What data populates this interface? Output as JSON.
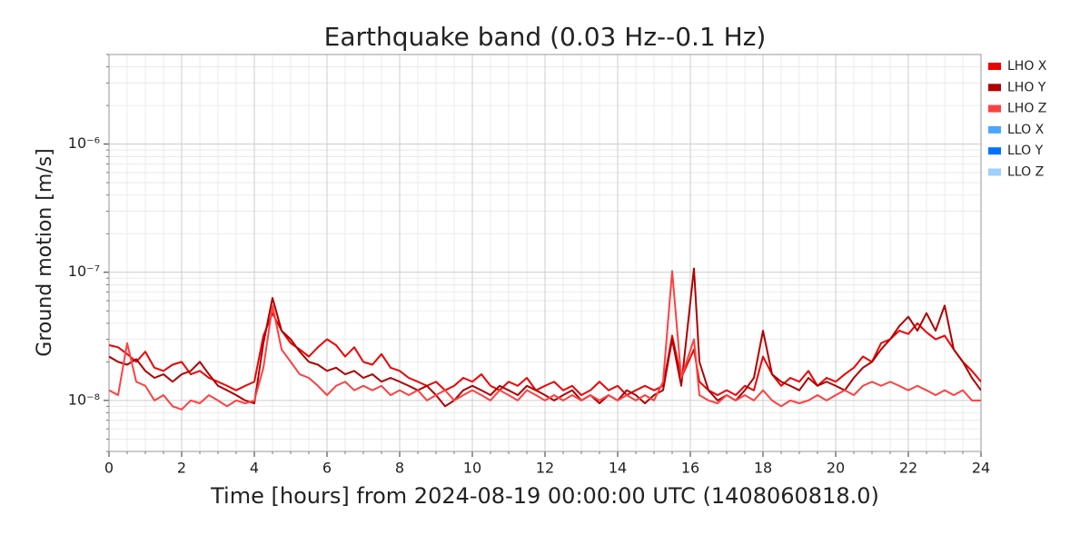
{
  "chart_data": {
    "type": "line",
    "title": "Earthquake band (0.03 Hz--0.1 Hz)",
    "xlabel": "Time [hours] from 2024-08-19 00:00:00 UTC (1408060818.0)",
    "ylabel": "Ground motion [m/s]",
    "ylog": true,
    "grid": true,
    "legend": "right",
    "xlim": [
      0,
      24
    ],
    "xticks": [
      0,
      2,
      4,
      6,
      8,
      10,
      12,
      14,
      16,
      18,
      20,
      22,
      24
    ],
    "xminorticks": [
      0.5,
      1,
      1.5,
      2.5,
      3,
      3.5,
      4.5,
      5,
      5.5,
      6.5,
      7,
      7.5,
      8.5,
      9,
      9.5,
      10.5,
      11,
      11.5,
      12.5,
      13,
      13.5,
      14.5,
      15,
      15.5,
      16.5,
      17,
      17.5,
      18.5,
      19,
      19.5,
      20.5,
      21,
      21.5,
      22.5,
      23,
      23.5
    ],
    "ylim": [
      4e-09,
      5e-06
    ],
    "yticks": [
      {
        "value": 1e-08,
        "label": "10⁻⁸"
      },
      {
        "value": 1e-07,
        "label": "10⁻⁷"
      },
      {
        "value": 1e-06,
        "label": "10⁻⁶"
      }
    ],
    "yminorticks": [
      4e-09,
      5e-09,
      6e-09,
      7e-09,
      8e-09,
      9e-09,
      2e-08,
      3e-08,
      4e-08,
      5e-08,
      6e-08,
      7e-08,
      8e-08,
      9e-08,
      2e-07,
      3e-07,
      4e-07,
      5e-07,
      6e-07,
      7e-07,
      8e-07,
      9e-07,
      2e-06,
      3e-06,
      4e-06,
      5e-06
    ],
    "x": [
      0,
      0.25,
      0.5,
      0.75,
      1,
      1.25,
      1.5,
      1.75,
      2,
      2.25,
      2.5,
      2.75,
      3,
      3.25,
      3.5,
      3.75,
      4,
      4.25,
      4.5,
      4.75,
      5,
      5.25,
      5.5,
      5.75,
      6,
      6.25,
      6.5,
      6.75,
      7,
      7.25,
      7.5,
      7.75,
      8,
      8.25,
      8.5,
      8.75,
      9,
      9.25,
      9.5,
      9.75,
      10,
      10.25,
      10.5,
      10.75,
      11,
      11.25,
      11.5,
      11.75,
      12,
      12.25,
      12.5,
      12.75,
      13,
      13.25,
      13.5,
      13.75,
      14,
      14.25,
      14.5,
      14.75,
      15,
      15.25,
      15.5,
      15.75,
      16.1,
      16.25,
      16.5,
      16.75,
      17,
      17.25,
      17.5,
      17.75,
      18,
      18.25,
      18.5,
      18.75,
      19,
      19.25,
      19.5,
      19.75,
      20,
      20.25,
      20.5,
      20.75,
      21,
      21.25,
      21.5,
      21.75,
      22,
      22.25,
      22.5,
      22.75,
      23,
      23.25,
      23.5,
      23.75,
      24
    ],
    "series": [
      {
        "name": "LHO X",
        "color": "#ee0000",
        "values": [
          2.7e-08,
          2.6e-08,
          2.3e-08,
          2e-08,
          2.4e-08,
          1.8e-08,
          1.7e-08,
          1.9e-08,
          2e-08,
          1.6e-08,
          1.7e-08,
          1.5e-08,
          1.4e-08,
          1.3e-08,
          1.2e-08,
          1.3e-08,
          1.4e-08,
          3.2e-08,
          4.8e-08,
          3.5e-08,
          2.8e-08,
          2.5e-08,
          2.2e-08,
          2.6e-08,
          3e-08,
          2.7e-08,
          2.2e-08,
          2.6e-08,
          2e-08,
          1.9e-08,
          2.3e-08,
          1.8e-08,
          1.7e-08,
          1.5e-08,
          1.4e-08,
          1.3e-08,
          1.4e-08,
          1.2e-08,
          1.3e-08,
          1.5e-08,
          1.4e-08,
          1.6e-08,
          1.3e-08,
          1.2e-08,
          1.4e-08,
          1.3e-08,
          1.5e-08,
          1.2e-08,
          1.3e-08,
          1.4e-08,
          1.2e-08,
          1.3e-08,
          1.1e-08,
          1.2e-08,
          1.4e-08,
          1.2e-08,
          1.3e-08,
          1.1e-08,
          1.2e-08,
          1.3e-08,
          1.2e-08,
          1.3e-08,
          3.2e-08,
          1.5e-08,
          2.5e-08,
          1.4e-08,
          1.2e-08,
          1.1e-08,
          1.2e-08,
          1.1e-08,
          1.3e-08,
          1.2e-08,
          2.2e-08,
          1.6e-08,
          1.3e-08,
          1.5e-08,
          1.4e-08,
          1.7e-08,
          1.3e-08,
          1.5e-08,
          1.4e-08,
          1.6e-08,
          1.8e-08,
          2.2e-08,
          2e-08,
          2.8e-08,
          3e-08,
          3.5e-08,
          3.3e-08,
          4e-08,
          3.4e-08,
          3e-08,
          3.2e-08,
          2.5e-08,
          2e-08,
          1.7e-08,
          1.4e-08
        ]
      },
      {
        "name": "LHO Y",
        "color": "#b00000",
        "values": [
          2.2e-08,
          2e-08,
          1.9e-08,
          2.1e-08,
          1.7e-08,
          1.5e-08,
          1.6e-08,
          1.4e-08,
          1.6e-08,
          1.7e-08,
          2e-08,
          1.6e-08,
          1.3e-08,
          1.2e-08,
          1.1e-08,
          1e-08,
          9.5e-09,
          2.8e-08,
          6.3e-08,
          3.5e-08,
          3e-08,
          2.4e-08,
          2e-08,
          1.9e-08,
          1.7e-08,
          1.8e-08,
          1.6e-08,
          1.7e-08,
          1.5e-08,
          1.6e-08,
          1.4e-08,
          1.5e-08,
          1.4e-08,
          1.3e-08,
          1.2e-08,
          1.3e-08,
          1.1e-08,
          9e-09,
          1e-08,
          1.2e-08,
          1.3e-08,
          1.2e-08,
          1.1e-08,
          1.3e-08,
          1.2e-08,
          1.1e-08,
          1.3e-08,
          1.2e-08,
          1.1e-08,
          1e-08,
          1.1e-08,
          1.2e-08,
          1e-08,
          1.1e-08,
          9.5e-09,
          1.1e-08,
          1e-08,
          1.2e-08,
          1.1e-08,
          9.5e-09,
          1.1e-08,
          1.2e-08,
          3e-08,
          1.3e-08,
          1.07e-07,
          2e-08,
          1.2e-08,
          1e-08,
          1.1e-08,
          1e-08,
          1.2e-08,
          1.5e-08,
          3.5e-08,
          1.6e-08,
          1.4e-08,
          1.3e-08,
          1.2e-08,
          1.5e-08,
          1.3e-08,
          1.4e-08,
          1.3e-08,
          1.2e-08,
          1.5e-08,
          1.8e-08,
          2e-08,
          2.5e-08,
          3e-08,
          3.8e-08,
          4.5e-08,
          3.5e-08,
          4.8e-08,
          3.5e-08,
          5.5e-08,
          2.5e-08,
          2e-08,
          1.5e-08,
          1.2e-08
        ]
      },
      {
        "name": "LHO Z",
        "color": "#ff4040",
        "values": [
          1.2e-08,
          1.1e-08,
          2.8e-08,
          1.4e-08,
          1.3e-08,
          1e-08,
          1.1e-08,
          9e-09,
          8.5e-09,
          1e-08,
          9.5e-09,
          1.1e-08,
          1e-08,
          9e-09,
          1e-08,
          9.5e-09,
          1e-08,
          1.8e-08,
          5.5e-08,
          2.5e-08,
          2e-08,
          1.6e-08,
          1.5e-08,
          1.3e-08,
          1.1e-08,
          1.3e-08,
          1.4e-08,
          1.2e-08,
          1.3e-08,
          1.2e-08,
          1.3e-08,
          1.1e-08,
          1.2e-08,
          1.1e-08,
          1.2e-08,
          1e-08,
          1.1e-08,
          1.2e-08,
          1e-08,
          1.1e-08,
          1.2e-08,
          1.1e-08,
          1e-08,
          1.2e-08,
          1.1e-08,
          1e-08,
          1.2e-08,
          1.1e-08,
          1e-08,
          1.1e-08,
          1e-08,
          1.1e-08,
          1e-08,
          1.1e-08,
          1e-08,
          1.1e-08,
          1e-08,
          1.1e-08,
          1e-08,
          1.1e-08,
          1e-08,
          1.4e-08,
          1.02e-07,
          1.5e-08,
          3e-08,
          1.1e-08,
          1e-08,
          9.5e-09,
          1.1e-08,
          1e-08,
          1.1e-08,
          1e-08,
          1.2e-08,
          1e-08,
          9e-09,
          1e-08,
          9.5e-09,
          1e-08,
          1.1e-08,
          1e-08,
          1.1e-08,
          1.2e-08,
          1.1e-08,
          1.3e-08,
          1.4e-08,
          1.3e-08,
          1.4e-08,
          1.3e-08,
          1.2e-08,
          1.3e-08,
          1.2e-08,
          1.1e-08,
          1.2e-08,
          1.1e-08,
          1.2e-08,
          1e-08,
          1e-08
        ]
      },
      {
        "name": "LLO X",
        "color": "#4ba6ff",
        "values": [
          null,
          null,
          null,
          null,
          null,
          null,
          null,
          null,
          null,
          null,
          null,
          null,
          null,
          null,
          null,
          null,
          null,
          null,
          null,
          null,
          null,
          null,
          null,
          null,
          null,
          null,
          null,
          null,
          null,
          null,
          null,
          null,
          null,
          null,
          null,
          null,
          null,
          null,
          null,
          null,
          null,
          null,
          null,
          null,
          null,
          null,
          null,
          null,
          null,
          null,
          null,
          null,
          null,
          null,
          null,
          null,
          null,
          null,
          null,
          null,
          null,
          null,
          null,
          null,
          null,
          null,
          null,
          null,
          null,
          null,
          null,
          null,
          null,
          null,
          null,
          null,
          null,
          null,
          null,
          null,
          null,
          null,
          null,
          null,
          null,
          null,
          null,
          null,
          null,
          null,
          null,
          null,
          null,
          null,
          null,
          null,
          null
        ]
      },
      {
        "name": "LLO Y",
        "color": "#0072ff",
        "values": [
          null,
          null,
          null,
          null,
          null,
          null,
          null,
          null,
          null,
          null,
          null,
          null,
          null,
          null,
          null,
          null,
          null,
          null,
          null,
          null,
          null,
          null,
          null,
          null,
          null,
          null,
          null,
          null,
          null,
          null,
          null,
          null,
          null,
          null,
          null,
          null,
          null,
          null,
          null,
          null,
          null,
          null,
          null,
          null,
          null,
          null,
          null,
          null,
          null,
          null,
          null,
          null,
          null,
          null,
          null,
          null,
          null,
          null,
          null,
          null,
          null,
          null,
          null,
          null,
          null,
          null,
          null,
          null,
          null,
          null,
          null,
          null,
          null,
          null,
          null,
          null,
          null,
          null,
          null,
          null,
          null,
          null,
          null,
          null,
          null,
          null,
          null,
          null,
          null,
          null,
          null,
          null,
          null,
          null,
          null,
          null,
          null
        ]
      },
      {
        "name": "LLO Z",
        "color": "#9fcfff",
        "values": [
          null,
          null,
          null,
          null,
          null,
          null,
          null,
          null,
          null,
          null,
          null,
          null,
          null,
          null,
          null,
          null,
          null,
          null,
          null,
          null,
          null,
          null,
          null,
          null,
          null,
          null,
          null,
          null,
          null,
          null,
          null,
          null,
          null,
          null,
          null,
          null,
          null,
          null,
          null,
          null,
          null,
          null,
          null,
          null,
          null,
          null,
          null,
          null,
          null,
          null,
          null,
          null,
          null,
          null,
          null,
          null,
          null,
          null,
          null,
          null,
          null,
          null,
          null,
          null,
          null,
          null,
          null,
          null,
          null,
          null,
          null,
          null,
          null,
          null,
          null,
          null,
          null,
          null,
          null,
          null,
          null,
          null,
          null,
          null,
          null,
          null,
          null,
          null,
          null,
          null,
          null,
          null,
          null,
          null,
          null,
          null,
          null
        ]
      }
    ]
  }
}
